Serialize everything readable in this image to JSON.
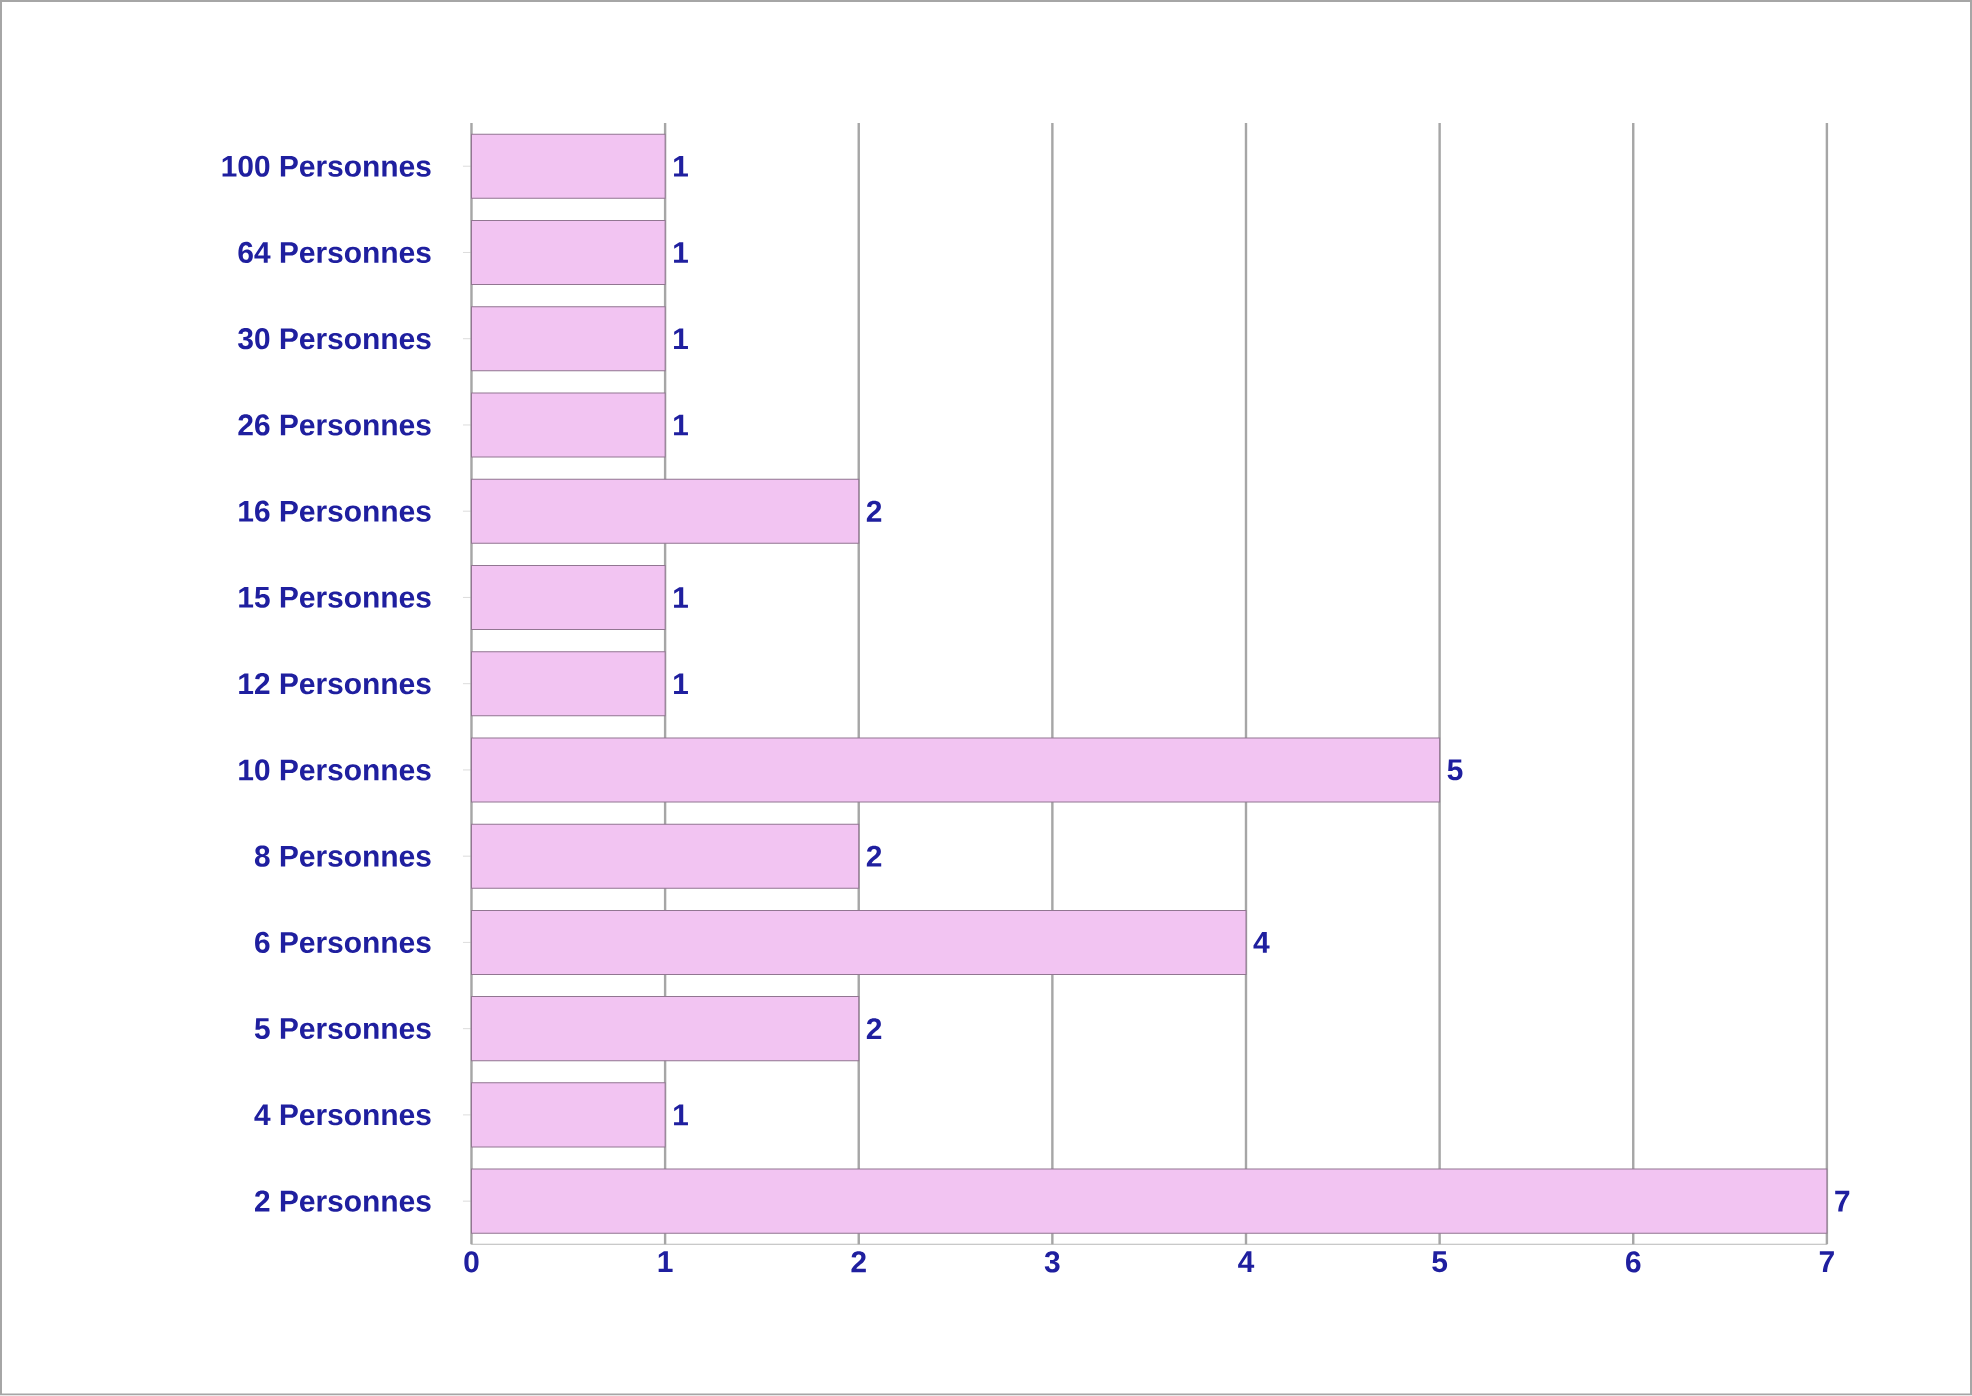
{
  "chart_data": {
    "type": "bar",
    "orientation": "horizontal",
    "categories": [
      "100 Personnes",
      "64 Personnes",
      "30 Personnes",
      "26 Personnes",
      "16 Personnes",
      "15 Personnes",
      "12 Personnes",
      "10 Personnes",
      "8 Personnes",
      "6 Personnes",
      "5 Personnes",
      "4 Personnes",
      "2 Personnes"
    ],
    "values": [
      1,
      1,
      1,
      1,
      2,
      1,
      1,
      5,
      2,
      4,
      2,
      1,
      7
    ],
    "color": "#f2c4f2",
    "xlim": [
      0,
      7
    ],
    "xticks": [
      0,
      1,
      2,
      3,
      4,
      5,
      6,
      7
    ],
    "grid": "x",
    "data_labels": true
  }
}
